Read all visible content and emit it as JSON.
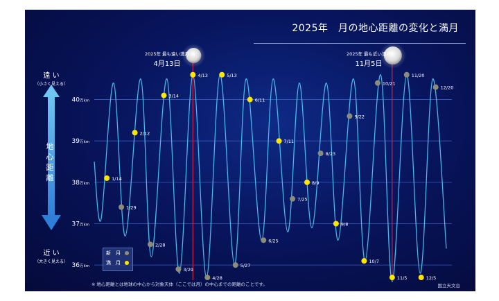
{
  "title": "2025年　月の地心距離の変化と満月",
  "far_label": "遠 い",
  "far_sub": "（小さく見える）",
  "near_label": "近 い",
  "near_sub": "（大きく見える）",
  "vertical_label": [
    "地",
    "心",
    "距",
    "離"
  ],
  "callout_far_caption": "2025年 最も遠い満月",
  "callout_far_date": "4月13日",
  "callout_near_caption": "2025年 最も近い満月",
  "callout_near_date": "11月5日",
  "legend_new": "新　月",
  "legend_full": "満　月",
  "footnote": "※ 地心距離とは地球の中心から対象天体（ここでは月）の中心までの距離のことです。",
  "credit": "国立天文台",
  "colors": {
    "background": "#08155e",
    "curve": "#46b8ea",
    "full_moon": "#ffe600",
    "new_moon": "#8c8c7a",
    "marker_line": "#d0204a",
    "grid": "#3a5cbf"
  },
  "chart_data": {
    "type": "line",
    "ylabel_unit": "万km",
    "y_ticks": [
      {
        "value": 40,
        "label": "40万km"
      },
      {
        "value": 39,
        "label": "39万km"
      },
      {
        "value": 38,
        "label": "38万km"
      },
      {
        "value": 37,
        "label": "37万km"
      },
      {
        "value": 36,
        "label": "36万km"
      }
    ],
    "ylim": [
      35.6,
      41.3
    ],
    "xlim": [
      "2025-01-01",
      "2025-12-31"
    ],
    "grid": true,
    "highlight_dates": [
      "2025-04-13",
      "2025-11-05"
    ],
    "full_moons": [
      {
        "date": "2025-01-14",
        "label": "1/14",
        "value": 38.1
      },
      {
        "date": "2025-02-12",
        "label": "2/12",
        "value": 39.2
      },
      {
        "date": "2025-03-14",
        "label": "3/14",
        "value": 40.1
      },
      {
        "date": "2025-04-13",
        "label": "4/13",
        "value": 40.6
      },
      {
        "date": "2025-05-13",
        "label": "5/13",
        "value": 40.6
      },
      {
        "date": "2025-06-11",
        "label": "6/11",
        "value": 40.0
      },
      {
        "date": "2025-07-11",
        "label": "7/11",
        "value": 39.0
      },
      {
        "date": "2025-08-09",
        "label": "8/9",
        "value": 38.0
      },
      {
        "date": "2025-09-08",
        "label": "9/8",
        "value": 37.0
      },
      {
        "date": "2025-10-07",
        "label": "10/7",
        "value": 36.1
      },
      {
        "date": "2025-11-05",
        "label": "11/5",
        "value": 35.7
      },
      {
        "date": "2025-12-05",
        "label": "12/5",
        "value": 35.7
      }
    ],
    "new_moons": [
      {
        "date": "2025-01-29",
        "label": "1/29",
        "value": 37.4
      },
      {
        "date": "2025-02-28",
        "label": "2/28",
        "value": 36.5
      },
      {
        "date": "2025-03-29",
        "label": "3/29",
        "value": 35.9
      },
      {
        "date": "2025-04-28",
        "label": "4/28",
        "value": 35.7
      },
      {
        "date": "2025-05-27",
        "label": "5/27",
        "value": 36.0
      },
      {
        "date": "2025-06-25",
        "label": "6/25",
        "value": 36.6
      },
      {
        "date": "2025-07-25",
        "label": "7/25",
        "value": 37.6
      },
      {
        "date": "2025-08-23",
        "label": "8/23",
        "value": 38.7
      },
      {
        "date": "2025-09-22",
        "label": "9/22",
        "value": 39.6
      },
      {
        "date": "2025-10-21",
        "label": "10/21",
        "value": 40.4
      },
      {
        "date": "2025-11-20",
        "label": "11/20",
        "value": 40.6
      },
      {
        "date": "2025-12-20",
        "label": "12/20",
        "value": 40.3
      }
    ],
    "distance_curve": [
      {
        "date": "2025-01-01",
        "value": 38.5
      },
      {
        "date": "2025-01-08",
        "value": 37.1
      },
      {
        "date": "2025-01-21",
        "value": 40.4
      },
      {
        "date": "2025-02-02",
        "value": 36.7
      },
      {
        "date": "2025-02-18",
        "value": 40.5
      },
      {
        "date": "2025-03-01",
        "value": 36.2
      },
      {
        "date": "2025-03-17",
        "value": 40.5
      },
      {
        "date": "2025-03-30",
        "value": 35.8
      },
      {
        "date": "2025-04-13",
        "value": 40.6
      },
      {
        "date": "2025-04-27",
        "value": 35.7
      },
      {
        "date": "2025-05-11",
        "value": 40.6
      },
      {
        "date": "2025-05-26",
        "value": 36.0
      },
      {
        "date": "2025-06-07",
        "value": 40.5
      },
      {
        "date": "2025-06-23",
        "value": 36.6
      },
      {
        "date": "2025-07-05",
        "value": 40.5
      },
      {
        "date": "2025-07-20",
        "value": 36.8
      },
      {
        "date": "2025-08-01",
        "value": 40.4
      },
      {
        "date": "2025-08-14",
        "value": 36.9
      },
      {
        "date": "2025-08-29",
        "value": 40.4
      },
      {
        "date": "2025-09-10",
        "value": 36.6
      },
      {
        "date": "2025-09-26",
        "value": 40.5
      },
      {
        "date": "2025-10-08",
        "value": 36.1
      },
      {
        "date": "2025-10-24",
        "value": 40.6
      },
      {
        "date": "2025-11-05",
        "value": 35.6
      },
      {
        "date": "2025-11-20",
        "value": 40.6
      },
      {
        "date": "2025-12-04",
        "value": 35.8
      },
      {
        "date": "2025-12-17",
        "value": 40.5
      },
      {
        "date": "2025-12-31",
        "value": 36.4
      }
    ]
  }
}
